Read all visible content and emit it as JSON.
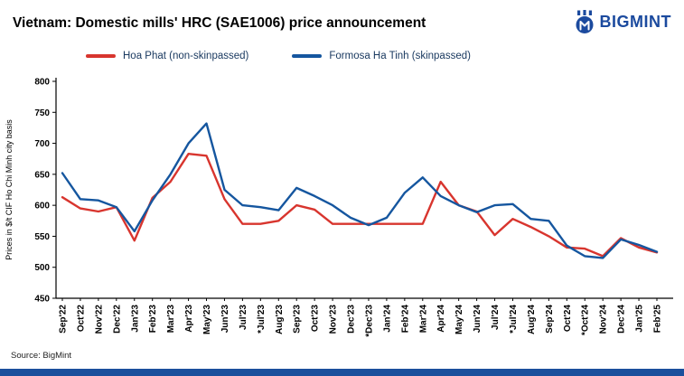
{
  "header": {
    "title": "Vietnam: Domestic mills' HRC (SAE1006) price announcement",
    "logo_text": "BIGMINT"
  },
  "legend": [
    {
      "label": "Hoa Phat (non-skinpassed)",
      "color": "#D8352E"
    },
    {
      "label": "Formosa Ha Tinh (skinpassed)",
      "color": "#15569F"
    }
  ],
  "footer": {
    "source": "Source: BigMint"
  },
  "colors": {
    "accent_bar": "#1B4F9C",
    "logo_blue": "#1B4A9E",
    "legend_text": "#17375E"
  },
  "chart_data": {
    "type": "line",
    "title": "Vietnam: Domestic mills' HRC (SAE1006) price announcement",
    "xlabel": "",
    "ylabel": "Prices in $/t CIF Ho Chi Minh city basis",
    "ylim": [
      450,
      800
    ],
    "yticks": [
      450,
      500,
      550,
      600,
      650,
      700,
      750,
      800
    ],
    "grid": false,
    "legend_position": "top",
    "categories": [
      "Sep'22",
      "Oct'22",
      "Nov'22",
      "Dec'22",
      "Jan'23",
      "Feb'23",
      "Mar'23",
      "Apr'23",
      "May'23",
      "Jun'23",
      "Jul'23",
      "*Jul'23",
      "Aug'23",
      "Sep'23",
      "Oct'23",
      "Nov'23",
      "Dec'23",
      "*Dec'23",
      "Jan'24",
      "Feb'24",
      "Mar'24",
      "Apr'24",
      "May'24",
      "Jun'24",
      "Jul'24",
      "*Jul'24",
      "Aug'24",
      "Sep'24",
      "Oct'24",
      "*Oct'24",
      "Nov'24",
      "Dec'24",
      "Jan'25",
      "Feb'25"
    ],
    "series": [
      {
        "name": "Hoa Phat (non-skinpassed)",
        "color": "#D8352E",
        "values": [
          613,
          595,
          590,
          597,
          543,
          612,
          638,
          683,
          680,
          610,
          570,
          570,
          575,
          600,
          593,
          570,
          570,
          570,
          570,
          570,
          570,
          638,
          600,
          590,
          552,
          578,
          565,
          550,
          532,
          530,
          518,
          547,
          532,
          524
        ]
      },
      {
        "name": "Formosa Ha Tinh (skinpassed)",
        "color": "#15569F",
        "values": [
          652,
          610,
          608,
          597,
          558,
          608,
          650,
          700,
          732,
          625,
          600,
          597,
          592,
          628,
          615,
          600,
          580,
          568,
          580,
          620,
          645,
          615,
          600,
          589,
          600,
          602,
          578,
          575,
          535,
          518,
          515,
          545,
          536,
          525
        ]
      }
    ]
  }
}
